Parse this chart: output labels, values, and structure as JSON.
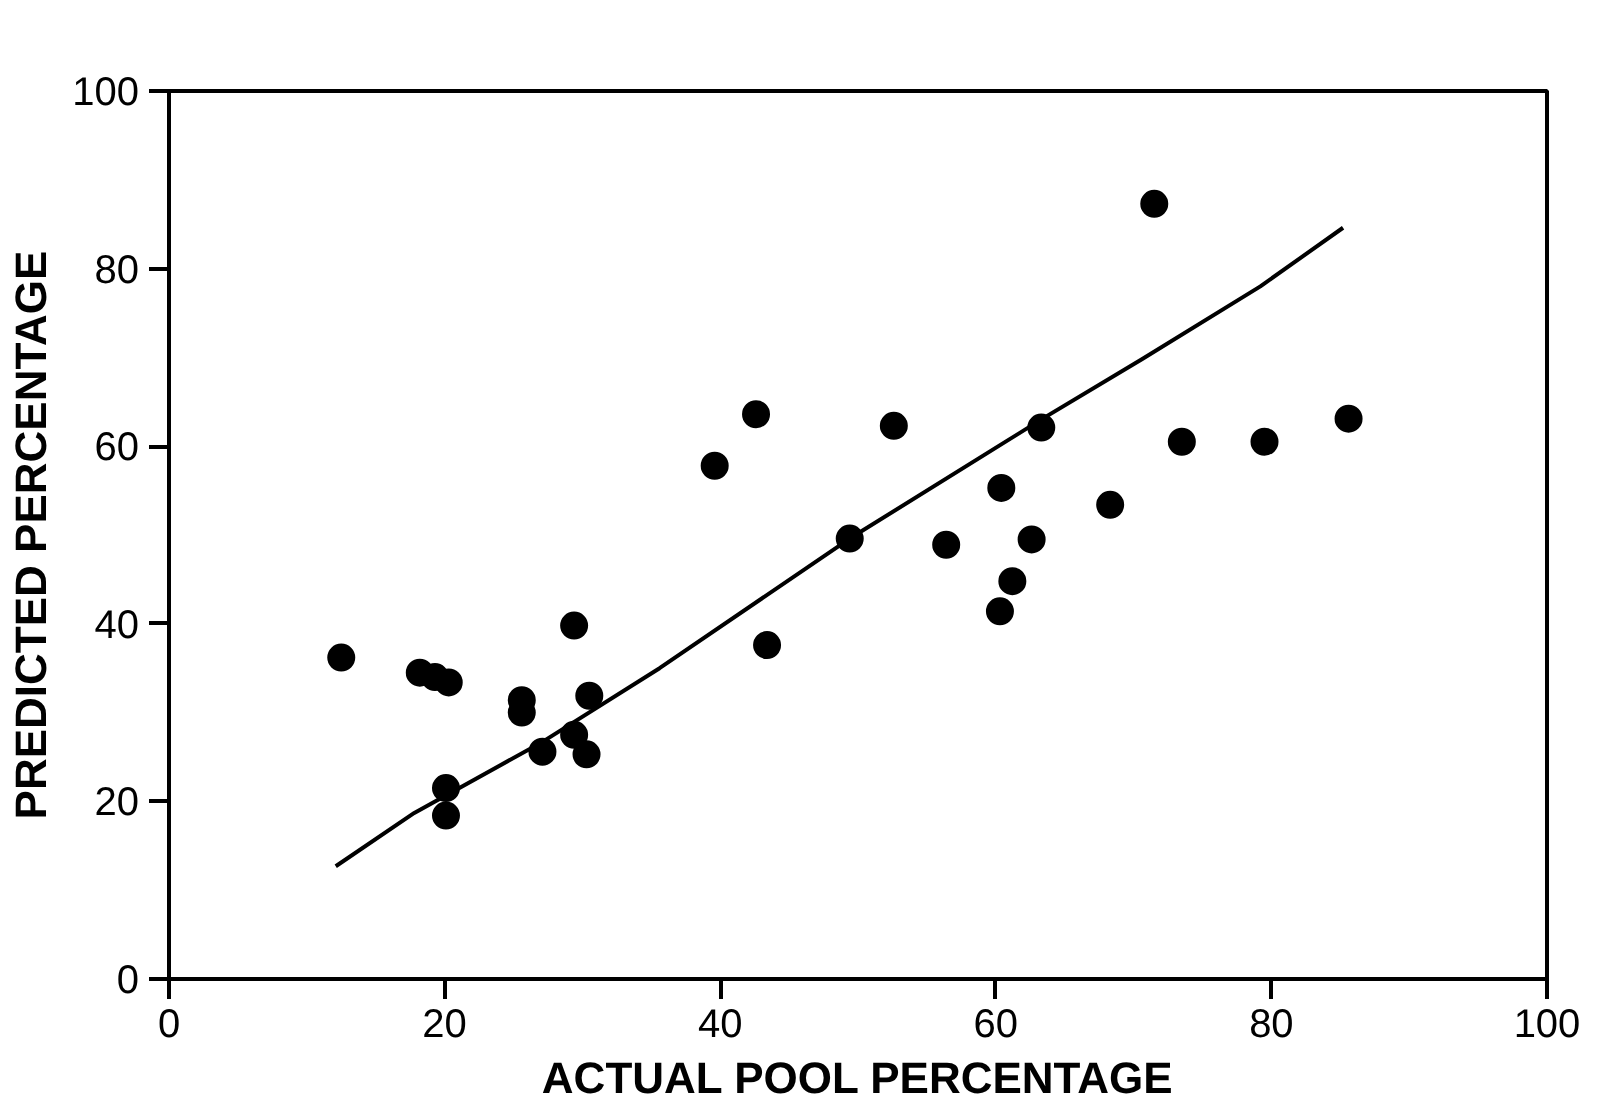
{
  "chart_data": {
    "type": "scatter",
    "xlabel": "ACTUAL POOL PERCENTAGE",
    "ylabel": "PREDICTED PERCENTAGE",
    "xlim": [
      0,
      100
    ],
    "ylim": [
      0,
      100
    ],
    "xticks": [
      0,
      20,
      40,
      60,
      80,
      100
    ],
    "yticks": [
      0,
      20,
      40,
      60,
      80,
      100
    ],
    "grid": false,
    "marker": "circle",
    "series": [
      {
        "color": "#000000",
        "x": [
          12.5,
          18.2,
          19.3,
          20.3,
          25.6,
          25.6,
          30.5,
          29.4,
          39.6,
          42.6,
          43.4,
          49.4,
          52.6,
          56.4,
          60.4,
          60.3,
          61.2,
          62.6,
          63.3,
          68.3,
          73.5,
          79.5,
          85.6,
          71.5,
          20.1,
          20.1,
          27.1,
          29.4,
          30.3
        ],
        "values": [
          36.2,
          34.5,
          34.0,
          33.4,
          31.4,
          30.0,
          31.9,
          39.8,
          57.8,
          63.6,
          37.6,
          49.6,
          62.3,
          48.9,
          55.3,
          41.4,
          44.8,
          49.5,
          62.1,
          53.4,
          60.5,
          60.5,
          63.1,
          87.3,
          21.5,
          18.4,
          25.6,
          27.5,
          25.3
        ]
      },
      {
        "type": "line",
        "color": "#000000",
        "line_style": "solid",
        "marker": "none",
        "x": [
          12.1,
          17.8,
          27.1,
          35.6,
          49.4,
          60.6,
          63.4,
          70.6,
          79.2,
          85.2
        ],
        "values": [
          12.7,
          18.7,
          26.7,
          35.0,
          49.6,
          60.4,
          63.1,
          69.8,
          78.0,
          84.6
        ]
      }
    ]
  }
}
